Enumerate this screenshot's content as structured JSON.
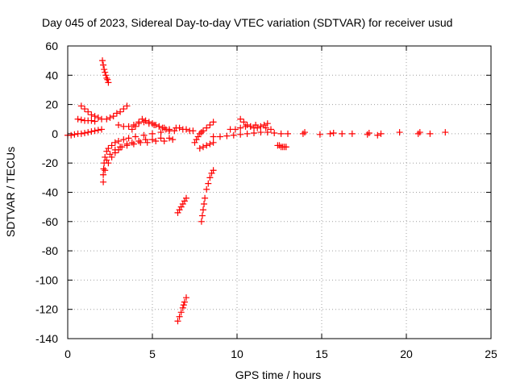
{
  "chart_data": {
    "type": "scatter",
    "title": "Day 045 of 2023, Sidereal Day-to-day VTEC variation (SDTVAR) for receiver usud",
    "xlabel": "GPS time / hours",
    "ylabel": "SDTVAR / TECUs",
    "xlim": [
      0,
      25
    ],
    "ylim": [
      -140,
      60
    ],
    "xticks": [
      0,
      5,
      10,
      15,
      20,
      25
    ],
    "yticks": [
      -140,
      -120,
      -100,
      -80,
      -60,
      -40,
      -20,
      0,
      20,
      40,
      60
    ],
    "grid": true,
    "marker": "+",
    "color": "#ff0000",
    "series": [
      {
        "name": "baseline-early",
        "x": [
          0.0,
          0.2,
          0.4,
          0.6,
          0.8,
          1.0,
          1.2,
          1.4,
          1.6,
          1.8,
          2.0
        ],
        "y": [
          -1,
          -1,
          -0.5,
          0,
          0,
          0.5,
          1,
          1.5,
          2,
          2.5,
          3
        ]
      },
      {
        "name": "spike-2h",
        "x": [
          2.05,
          2.1,
          2.15,
          2.2,
          2.25,
          2.3,
          2.35,
          2.4
        ],
        "y": [
          50,
          47,
          44,
          42,
          40,
          38,
          37,
          35
        ]
      },
      {
        "name": "arc-1",
        "x": [
          0.8,
          1.0,
          1.2,
          1.4,
          1.6,
          1.8,
          2.0
        ],
        "y": [
          19,
          17,
          15,
          13,
          12,
          11,
          10
        ]
      },
      {
        "name": "arc-2",
        "x": [
          0.6,
          0.8,
          1.0,
          1.2,
          1.4,
          1.6
        ],
        "y": [
          10,
          9.5,
          9,
          9,
          9,
          8.5
        ]
      },
      {
        "name": "arc-3",
        "x": [
          2.3,
          2.5,
          2.7,
          2.9,
          3.1,
          3.3,
          3.5
        ],
        "y": [
          10,
          11,
          12,
          14,
          15,
          17,
          19
        ]
      },
      {
        "name": "drop-2h",
        "x": [
          2.1,
          2.1,
          2.12,
          2.15,
          2.2,
          2.3,
          2.4,
          2.6,
          2.8,
          3.0,
          3.3,
          3.6,
          4.0,
          4.5,
          5.0,
          5.5,
          6.0
        ],
        "y": [
          -33,
          -28,
          -24,
          -20,
          -16,
          -12,
          -10,
          -8,
          -6,
          -5,
          -4,
          -3,
          -2,
          -1,
          0,
          1,
          2
        ]
      },
      {
        "name": "recovery-a",
        "x": [
          2.2,
          2.4,
          2.6,
          2.8,
          3.0,
          3.2,
          3.5,
          3.8,
          4.2,
          4.6,
          5.0,
          5.5,
          6.0
        ],
        "y": [
          -25,
          -20,
          -16,
          -13,
          -11,
          -9,
          -7,
          -6,
          -5,
          -4,
          -4,
          -3,
          -3
        ]
      },
      {
        "name": "recovery-b",
        "x": [
          2.3,
          2.5,
          2.8,
          3.1,
          3.5,
          3.9,
          4.3,
          4.7,
          5.2,
          5.7,
          6.2
        ],
        "y": [
          -18,
          -14,
          -11,
          -9,
          -8,
          -7,
          -6,
          -6,
          -5,
          -5,
          -4
        ]
      },
      {
        "name": "hump-3-6h",
        "x": [
          3.0,
          3.3,
          3.6,
          3.9,
          4.2,
          4.5,
          4.8,
          5.1,
          5.4,
          5.7,
          6.0,
          6.3
        ],
        "y": [
          6,
          5,
          5,
          6,
          7,
          8,
          7,
          6,
          5,
          4,
          3,
          2
        ]
      },
      {
        "name": "hump-4-5h",
        "x": [
          3.8,
          4.0,
          4.2,
          4.4,
          4.6,
          4.8,
          5.0,
          5.2,
          5.4,
          5.6,
          5.8,
          6.0
        ],
        "y": [
          3,
          5,
          8,
          10,
          9,
          8,
          7,
          6,
          5,
          4,
          3,
          2
        ]
      },
      {
        "name": "bump-6.5h",
        "x": [
          6.4,
          6.6,
          6.8,
          7.0,
          7.2,
          7.4
        ],
        "y": [
          4,
          4,
          3,
          3,
          2,
          2
        ]
      },
      {
        "name": "dip-6.6h",
        "x": [
          6.5,
          6.6,
          6.7,
          6.8,
          6.9,
          7.0
        ],
        "y": [
          -54,
          -52,
          -50,
          -48,
          -46,
          -44
        ]
      },
      {
        "name": "dip-7h",
        "x": [
          6.5,
          6.6,
          6.7,
          6.8,
          6.85,
          6.9,
          7.0
        ],
        "y": [
          -128,
          -125,
          -122,
          -119,
          -117,
          -115,
          -112
        ]
      },
      {
        "name": "arc-7.5h",
        "x": [
          7.5,
          7.6,
          7.7,
          7.8,
          7.9,
          8.0,
          8.2,
          8.4,
          8.6
        ],
        "y": [
          -6,
          -4,
          -2,
          0,
          1,
          2,
          4,
          6,
          8
        ]
      },
      {
        "name": "drop-8h",
        "x": [
          7.9,
          7.95,
          8.0,
          8.05,
          8.1,
          8.2,
          8.3,
          8.4,
          8.5,
          8.6
        ],
        "y": [
          -60,
          -56,
          -52,
          -48,
          -44,
          -38,
          -34,
          -30,
          -27,
          -25
        ]
      },
      {
        "name": "neg-8h",
        "x": [
          7.8,
          8.0,
          8.2,
          8.4,
          8.6
        ],
        "y": [
          -10,
          -9,
          -8,
          -7,
          -6
        ]
      },
      {
        "name": "midday-baseline",
        "x": [
          8.6,
          9.0,
          9.4,
          9.8,
          10.2,
          10.6,
          11.0,
          11.4,
          11.8,
          12.2,
          12.6,
          13.0
        ],
        "y": [
          -2,
          -2,
          -1.5,
          -1,
          -0.5,
          0,
          0.5,
          1,
          1,
          0.5,
          0,
          0
        ]
      },
      {
        "name": "arc-10h",
        "x": [
          10.2,
          10.4,
          10.6,
          10.8,
          11.0,
          11.2,
          11.4,
          11.6,
          11.8
        ],
        "y": [
          10,
          8,
          6,
          5,
          4,
          4,
          5,
          6,
          7
        ]
      },
      {
        "name": "arc-11h",
        "x": [
          9.6,
          9.9,
          10.2,
          10.5,
          10.8,
          11.1,
          11.4,
          11.7,
          12.0
        ],
        "y": [
          3,
          3,
          4,
          5,
          5,
          6,
          5,
          4,
          3
        ]
      },
      {
        "name": "tail-12.6h",
        "x": [
          12.4,
          12.5,
          12.6,
          12.7,
          12.8,
          12.9
        ],
        "y": [
          -8,
          -8,
          -9,
          -9,
          -9,
          -9
        ]
      },
      {
        "name": "scatter-late",
        "x": [
          13.9,
          14.0,
          14.9,
          15.5,
          15.7,
          16.2,
          16.8,
          17.7,
          17.8,
          18.3,
          18.5,
          19.6,
          20.7,
          20.8,
          21.4,
          22.3
        ],
        "y": [
          0,
          1,
          -0.5,
          0,
          0.5,
          0,
          0,
          -0.5,
          0.5,
          -1,
          0,
          1,
          0,
          1,
          0,
          1
        ]
      }
    ]
  }
}
